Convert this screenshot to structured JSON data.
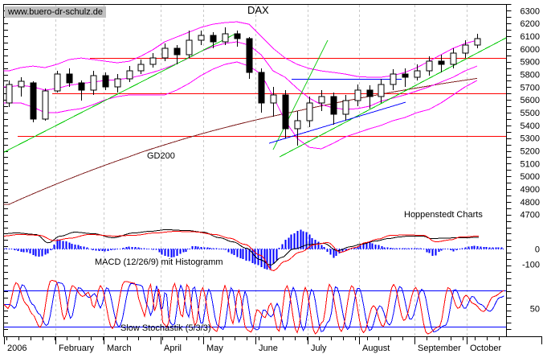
{
  "watermark": "www.buero-dr-schulz.de",
  "title": "DAX",
  "branding": "Hoppenstedt Charts",
  "annotations": {
    "gd200": "GD200",
    "macd": "MACD (12/26/9) mit Histogramm",
    "stochastic": "Slow Stochastik (5/3/3)"
  },
  "colors": {
    "up_candle": "#ffffff",
    "down_candle": "#000000",
    "bollinger": "#ff00ff",
    "trend_green": "#00c800",
    "support_red": "#ff0000",
    "gd200": "#802020",
    "blue": "#0000ff",
    "macd_line": "#000000",
    "macd_signal": "#ff0000",
    "histogram": "#0000ff",
    "stoch_k": "#ff0000",
    "stoch_d": "#0000ff",
    "grid": "#c8c8c8",
    "watermark_bg": "#c0c0c0",
    "axis": "#000000"
  },
  "chart_data": {
    "type": "candlestick",
    "instrument": "DAX",
    "period": "weekly, January - October 2006",
    "price_axis": {
      "max": 6300,
      "min": 4700,
      "step": 100,
      "tick_step": 50
    },
    "x_axis": {
      "months": [
        {
          "label": "2006",
          "f": 0
        },
        {
          "label": "February",
          "f": 0.1024
        },
        {
          "label": "March",
          "f": 0.1984
        },
        {
          "label": "April",
          "f": 0.312
        },
        {
          "label": "May",
          "f": 0.3968
        },
        {
          "label": "June",
          "f": 0.5008
        },
        {
          "label": "July",
          "f": 0.6048
        },
        {
          "label": "August",
          "f": 0.7072
        },
        {
          "label": "September",
          "f": 0.8176
        },
        {
          "label": "October",
          "f": 0.9216
        }
      ]
    },
    "price_panel": {
      "candles": [
        [
          5576,
          5753,
          5544,
          5721
        ],
        [
          5702,
          5778,
          5626,
          5747
        ],
        [
          5734,
          5747,
          5424,
          5450
        ],
        [
          5450,
          5690,
          5437,
          5671
        ],
        [
          5671,
          5828,
          5658,
          5803
        ],
        [
          5803,
          5847,
          5702,
          5734
        ],
        [
          5734,
          5753,
          5595,
          5677
        ],
        [
          5677,
          5828,
          5639,
          5791
        ],
        [
          5791,
          5816,
          5677,
          5702
        ],
        [
          5702,
          5803,
          5658,
          5765
        ],
        [
          5765,
          5866,
          5740,
          5828
        ],
        [
          5828,
          5917,
          5803,
          5879
        ],
        [
          5879,
          5967,
          5854,
          5929
        ],
        [
          5929,
          6043,
          5904,
          6005
        ],
        [
          6005,
          6030,
          5879,
          5955
        ],
        [
          5955,
          6144,
          5929,
          6068
        ],
        [
          6068,
          6144,
          6030,
          6106
        ],
        [
          6106,
          6131,
          6005,
          6056
        ],
        [
          6056,
          6170,
          6030,
          6119
        ],
        [
          6119,
          6144,
          6018,
          6081
        ],
        [
          6081,
          6094,
          5765,
          5816
        ],
        [
          5816,
          5847,
          5500,
          5576
        ],
        [
          5576,
          5702,
          5468,
          5639
        ],
        [
          5639,
          5677,
          5298,
          5374
        ],
        [
          5374,
          5513,
          5241,
          5437
        ],
        [
          5437,
          5626,
          5386,
          5576
        ],
        [
          5576,
          5677,
          5513,
          5626
        ],
        [
          5626,
          5658,
          5405,
          5487
        ],
        [
          5487,
          5639,
          5437,
          5595
        ],
        [
          5595,
          5721,
          5551,
          5677
        ],
        [
          5677,
          5715,
          5532,
          5626
        ],
        [
          5626,
          5765,
          5576,
          5721
        ],
        [
          5721,
          5841,
          5677,
          5803
        ],
        [
          5803,
          5847,
          5702,
          5778
        ],
        [
          5778,
          5879,
          5753,
          5828
        ],
        [
          5828,
          5942,
          5791,
          5904
        ],
        [
          5904,
          5955,
          5816,
          5879
        ],
        [
          5879,
          6005,
          5847,
          5967
        ],
        [
          5967,
          6068,
          5929,
          6030
        ],
        [
          6030,
          6119,
          6005,
          6081
        ]
      ],
      "bollinger_upper": [
        5828,
        5854,
        5866,
        5854,
        5879,
        5917,
        5929,
        5917,
        5904,
        5892,
        5904,
        5942,
        5993,
        6056,
        6094,
        6131,
        6169,
        6194,
        6207,
        6213,
        6194,
        6100,
        6005,
        5929,
        5879,
        5847,
        5828,
        5816,
        5803,
        5784,
        5778,
        5778,
        5791,
        5816,
        5854,
        5904,
        5955,
        6005,
        6043,
        6068
      ],
      "bollinger_middle": [
        5702,
        5715,
        5702,
        5677,
        5690,
        5715,
        5728,
        5740,
        5753,
        5759,
        5772,
        5791,
        5816,
        5847,
        5885,
        5929,
        5980,
        6018,
        6043,
        6056,
        6030,
        5955,
        5828,
        5778,
        5690,
        5614,
        5563,
        5538,
        5525,
        5532,
        5551,
        5589,
        5614,
        5639,
        5671,
        5702,
        5740,
        5778,
        5828,
        5866
      ],
      "bollinger_lower": [
        5576,
        5576,
        5544,
        5500,
        5500,
        5519,
        5532,
        5563,
        5601,
        5626,
        5639,
        5639,
        5639,
        5639,
        5677,
        5728,
        5791,
        5841,
        5879,
        5898,
        5866,
        5803,
        5627,
        5437,
        5298,
        5228,
        5216,
        5260,
        5310,
        5342,
        5374,
        5399,
        5437,
        5462,
        5500,
        5525,
        5576,
        5639,
        5702,
        5753
      ],
      "gd200": [
        4780,
        4822,
        4863,
        4903,
        4942,
        4980,
        5017,
        5053,
        5088,
        5122,
        5155,
        5187,
        5218,
        5248,
        5277,
        5305,
        5332,
        5358,
        5383,
        5407,
        5430,
        5452,
        5473,
        5493,
        5513,
        5533,
        5553,
        5573,
        5592,
        5610,
        5628,
        5645,
        5662,
        5678,
        5694,
        5710,
        5726,
        5741,
        5755,
        5769
      ],
      "h_lines": [
        {
          "price": 5930,
          "f1": 0.171,
          "f2": 1,
          "color": "support_red"
        },
        {
          "price": 5650,
          "f1": 0.096,
          "f2": 1,
          "color": "support_red"
        },
        {
          "price": 5320,
          "f1": 0.027,
          "f2": 1,
          "color": "support_red"
        },
        {
          "price": 5765,
          "f1": 0.5728,
          "f2": 0.792,
          "color": "blue"
        }
      ],
      "trend_lines": [
        {
          "f1": 0,
          "p1": 5190,
          "f2": 0.4608,
          "p2": 6119,
          "color": "trend_green"
        },
        {
          "f1": 0.5488,
          "p1": 5153,
          "f2": 1,
          "p2": 6087,
          "color": "trend_green"
        },
        {
          "f1": 0.536,
          "p1": 5210,
          "f2": 0.6448,
          "p2": 6068,
          "color": "trend_green"
        },
        {
          "f1": 0.528,
          "p1": 5260,
          "f2": 0.8,
          "p2": 5582,
          "color": "blue"
        }
      ]
    },
    "macd_panel": {
      "axis_labels": [
        "0",
        "-100"
      ],
      "line": [
        [
          0,
          100
        ],
        [
          0.024,
          105
        ],
        [
          0.064,
          95
        ],
        [
          0.088,
          40
        ],
        [
          0.112,
          84
        ],
        [
          0.141,
          110
        ],
        [
          0.179,
          100
        ],
        [
          0.216,
          74
        ],
        [
          0.259,
          105
        ],
        [
          0.291,
          116
        ],
        [
          0.323,
          126
        ],
        [
          0.365,
          121
        ],
        [
          0.397,
          110
        ],
        [
          0.429,
          74
        ],
        [
          0.456,
          47
        ],
        [
          0.483,
          5
        ],
        [
          0.509,
          -68
        ],
        [
          0.531,
          -105
        ],
        [
          0.553,
          -55
        ],
        [
          0.576,
          0
        ],
        [
          0.61,
          30
        ],
        [
          0.637,
          37
        ],
        [
          0.664,
          -11
        ],
        [
          0.69,
          15
        ],
        [
          0.712,
          32
        ],
        [
          0.74,
          52
        ],
        [
          0.765,
          68
        ],
        [
          0.79,
          80
        ],
        [
          0.803,
          84
        ],
        [
          0.835,
          84
        ],
        [
          0.851,
          68
        ],
        [
          0.88,
          72
        ],
        [
          0.909,
          74
        ],
        [
          0.95,
          76
        ]
      ],
      "signal": [
        [
          0,
          85
        ],
        [
          0.03,
          95
        ],
        [
          0.07,
          90
        ],
        [
          0.1,
          55
        ],
        [
          0.13,
          70
        ],
        [
          0.17,
          95
        ],
        [
          0.22,
          85
        ],
        [
          0.26,
          90
        ],
        [
          0.3,
          105
        ],
        [
          0.34,
          115
        ],
        [
          0.38,
          112
        ],
        [
          0.42,
          95
        ],
        [
          0.45,
          70
        ],
        [
          0.48,
          30
        ],
        [
          0.51,
          -40
        ],
        [
          0.536,
          -142
        ],
        [
          0.56,
          -80
        ],
        [
          0.59,
          -20
        ],
        [
          0.62,
          30
        ],
        [
          0.645,
          42
        ],
        [
          0.67,
          -21
        ],
        [
          0.7,
          10
        ],
        [
          0.72,
          42
        ],
        [
          0.745,
          65
        ],
        [
          0.77,
          89
        ],
        [
          0.8,
          92
        ],
        [
          0.835,
          90
        ],
        [
          0.86,
          47
        ],
        [
          0.89,
          60
        ],
        [
          0.91,
          79
        ],
        [
          0.95,
          85
        ]
      ],
      "histogram": [
        [
          0,
          5
        ],
        [
          0.04,
          -20
        ],
        [
          0.07,
          -50
        ],
        [
          0.088,
          -30
        ],
        [
          0.1,
          30
        ],
        [
          0.105,
          63
        ],
        [
          0.12,
          50
        ],
        [
          0.14,
          30
        ],
        [
          0.16,
          15
        ],
        [
          0.18,
          -10
        ],
        [
          0.2,
          -15
        ],
        [
          0.22,
          -5
        ],
        [
          0.25,
          15
        ],
        [
          0.28,
          5
        ],
        [
          0.3,
          -5
        ],
        [
          0.32,
          -45
        ],
        [
          0.335,
          -55
        ],
        [
          0.36,
          -20
        ],
        [
          0.375,
          20
        ],
        [
          0.4,
          10
        ],
        [
          0.42,
          5
        ],
        [
          0.44,
          -5
        ],
        [
          0.45,
          -30
        ],
        [
          0.47,
          -60
        ],
        [
          0.487,
          -80
        ],
        [
          0.5,
          -100
        ],
        [
          0.52,
          -130
        ],
        [
          0.528,
          -140
        ],
        [
          0.54,
          -80
        ],
        [
          0.55,
          20
        ],
        [
          0.56,
          60
        ],
        [
          0.575,
          100
        ],
        [
          0.588,
          126
        ],
        [
          0.6,
          110
        ],
        [
          0.62,
          60
        ],
        [
          0.635,
          20
        ],
        [
          0.645,
          -20
        ],
        [
          0.655,
          -58
        ],
        [
          0.668,
          -30
        ],
        [
          0.68,
          -10
        ],
        [
          0.7,
          10
        ],
        [
          0.715,
          35
        ],
        [
          0.725,
          47
        ],
        [
          0.74,
          30
        ],
        [
          0.76,
          10
        ],
        [
          0.78,
          5
        ],
        [
          0.8,
          5
        ],
        [
          0.83,
          5
        ],
        [
          0.845,
          -25
        ],
        [
          0.855,
          -47
        ],
        [
          0.87,
          -10
        ],
        [
          0.88,
          5
        ],
        [
          0.895,
          -15
        ],
        [
          0.91,
          5
        ],
        [
          0.925,
          15
        ],
        [
          0.935,
          20
        ],
        [
          0.95,
          15
        ],
        [
          0.97,
          10
        ],
        [
          1,
          12
        ]
      ]
    },
    "stochastic_panel": {
      "axis_label": "50",
      "upper_level": 80,
      "lower_level": 20,
      "k": [
        [
          0,
          57
        ],
        [
          0.008,
          50
        ],
        [
          0.024,
          93
        ],
        [
          0.045,
          57
        ],
        [
          0.056,
          41
        ],
        [
          0.072,
          19
        ],
        [
          0.094,
          97
        ],
        [
          0.104,
          95
        ],
        [
          0.12,
          32
        ],
        [
          0.136,
          88
        ],
        [
          0.157,
          70
        ],
        [
          0.168,
          77
        ],
        [
          0.179,
          51
        ],
        [
          0.192,
          88
        ],
        [
          0.216,
          17
        ],
        [
          0.24,
          95
        ],
        [
          0.261,
          92
        ],
        [
          0.272,
          57
        ],
        [
          0.28,
          37
        ],
        [
          0.291,
          91
        ],
        [
          0.301,
          45
        ],
        [
          0.309,
          84
        ],
        [
          0.317,
          25
        ],
        [
          0.325,
          19
        ],
        [
          0.339,
          92
        ],
        [
          0.355,
          35
        ],
        [
          0.365,
          91
        ],
        [
          0.381,
          21
        ],
        [
          0.395,
          85
        ],
        [
          0.413,
          19
        ],
        [
          0.424,
          12
        ],
        [
          0.44,
          88
        ],
        [
          0.456,
          25
        ],
        [
          0.467,
          81
        ],
        [
          0.483,
          15
        ],
        [
          0.493,
          11
        ],
        [
          0.504,
          48
        ],
        [
          0.52,
          35
        ],
        [
          0.531,
          59
        ],
        [
          0.547,
          12
        ],
        [
          0.563,
          88
        ],
        [
          0.584,
          10
        ],
        [
          0.6,
          85
        ],
        [
          0.62,
          8
        ],
        [
          0.635,
          28
        ],
        [
          0.648,
          90
        ],
        [
          0.672,
          12
        ],
        [
          0.693,
          88
        ],
        [
          0.716,
          10
        ],
        [
          0.736,
          55
        ],
        [
          0.755,
          20
        ],
        [
          0.776,
          90
        ],
        [
          0.797,
          30
        ],
        [
          0.82,
          85
        ],
        [
          0.843,
          8
        ],
        [
          0.867,
          20
        ],
        [
          0.885,
          85
        ],
        [
          0.905,
          50
        ],
        [
          0.92,
          72
        ],
        [
          0.935,
          58
        ],
        [
          0.955,
          45
        ],
        [
          0.975,
          70
        ],
        [
          0.998,
          80
        ]
      ]
    }
  }
}
